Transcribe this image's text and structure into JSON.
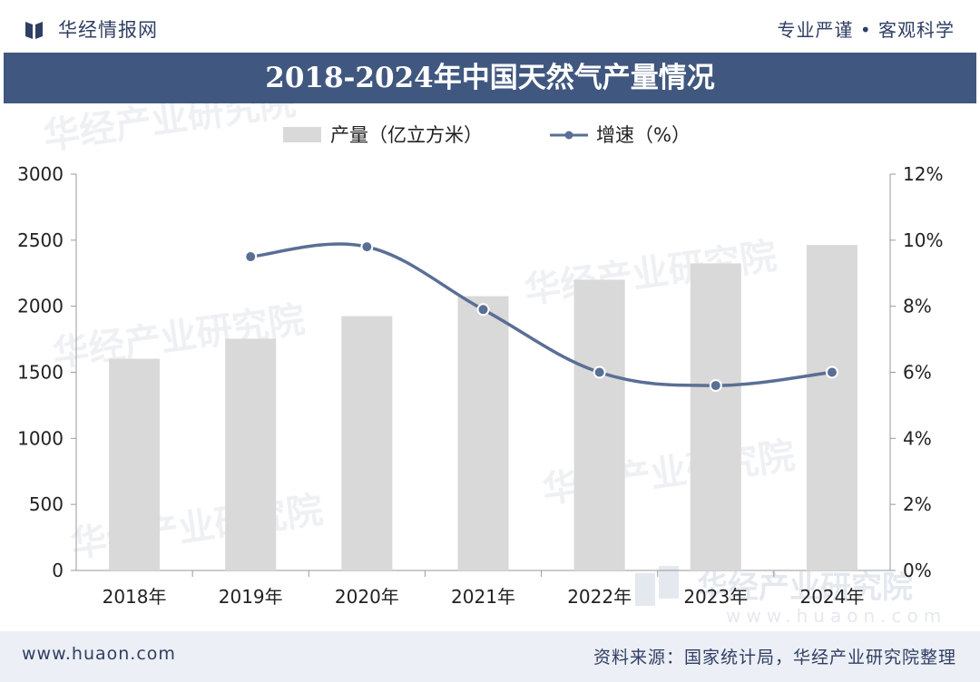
{
  "header": {
    "brand_name": "华经情报网",
    "slogan": "专业严谨 • 客观科学"
  },
  "title": "2018-2024年中国天然气产量情况",
  "footer": {
    "url": "www.huaon.com",
    "source": "资料来源：国家统计局，华经产业研究院整理"
  },
  "watermark": {
    "text": "华经产业研究院",
    "url": "www.huaon.com"
  },
  "colors": {
    "bar": "#d9d9d9",
    "line": "#5a6f94",
    "title_bg": "#40577f",
    "text_dark": "#2f3f63"
  },
  "chart_data": {
    "type": "bar",
    "title": "2018-2024年中国天然气产量情况",
    "categories": [
      "2018年",
      "2019年",
      "2020年",
      "2021年",
      "2022年",
      "2023年",
      "2024年"
    ],
    "series": [
      {
        "name": "产量（亿立方米）",
        "type": "bar",
        "axis": "left",
        "values": [
          1602,
          1754,
          1925,
          2076,
          2201,
          2324,
          2464
        ]
      },
      {
        "name": "增速（%）",
        "type": "line",
        "axis": "right",
        "values": [
          null,
          9.5,
          9.8,
          7.9,
          6.0,
          5.6,
          6.0
        ]
      }
    ],
    "y_left": {
      "min": 0,
      "max": 3000,
      "ticks": [
        0,
        500,
        1000,
        1500,
        2000,
        2500,
        3000
      ]
    },
    "y_right": {
      "min": 0,
      "max": 12,
      "ticks": [
        "0%",
        "2%",
        "4%",
        "6%",
        "8%",
        "10%",
        "12%"
      ]
    },
    "legend": [
      "产量（亿立方米）",
      "增速（%）"
    ],
    "legend_position": "top-center"
  }
}
